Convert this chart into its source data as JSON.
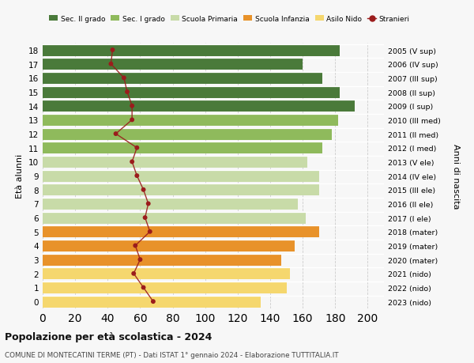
{
  "ages": [
    0,
    1,
    2,
    3,
    4,
    5,
    6,
    7,
    8,
    9,
    10,
    11,
    12,
    13,
    14,
    15,
    16,
    17,
    18
  ],
  "bar_values": [
    134,
    150,
    152,
    147,
    155,
    170,
    162,
    157,
    170,
    170,
    163,
    172,
    178,
    182,
    192,
    183,
    172,
    160,
    183
  ],
  "stranieri_values": [
    68,
    62,
    56,
    60,
    57,
    66,
    63,
    65,
    62,
    58,
    55,
    58,
    45,
    55,
    55,
    52,
    50,
    42,
    43
  ],
  "right_labels": [
    "2023 (nido)",
    "2022 (nido)",
    "2021 (nido)",
    "2020 (mater)",
    "2019 (mater)",
    "2018 (mater)",
    "2017 (I ele)",
    "2016 (II ele)",
    "2015 (III ele)",
    "2014 (IV ele)",
    "2013 (V ele)",
    "2012 (I med)",
    "2011 (II med)",
    "2010 (III med)",
    "2009 (I sup)",
    "2008 (II sup)",
    "2007 (III sup)",
    "2006 (IV sup)",
    "2005 (V sup)"
  ],
  "bar_colors": [
    "#f5d76e",
    "#f5d76e",
    "#f5d76e",
    "#e8922a",
    "#e8922a",
    "#e8922a",
    "#c8dba8",
    "#c8dba8",
    "#c8dba8",
    "#c8dba8",
    "#c8dba8",
    "#8fba5c",
    "#8fba5c",
    "#8fba5c",
    "#4a7a3a",
    "#4a7a3a",
    "#4a7a3a",
    "#4a7a3a",
    "#4a7a3a"
  ],
  "legend_labels": [
    "Sec. II grado",
    "Sec. I grado",
    "Scuola Primaria",
    "Scuola Infanzia",
    "Asilo Nido",
    "Stranieri"
  ],
  "legend_colors": [
    "#4a7a3a",
    "#8fba5c",
    "#c8dba8",
    "#e8922a",
    "#f5d76e",
    "#9b1c1c"
  ],
  "stranieri_color": "#9b1c1c",
  "stranieri_line_color": "#9b1c1c",
  "ylabel_left": "Età alunni",
  "ylabel_right": "Anni di nascita",
  "title": "Popolazione per età scolastica - 2024",
  "subtitle": "COMUNE DI MONTECATINI TERME (PT) - Dati ISTAT 1° gennaio 2024 - Elaborazione TUTTITALIA.IT",
  "xlim": [
    0,
    210
  ],
  "xticks": [
    0,
    20,
    40,
    60,
    80,
    100,
    120,
    140,
    160,
    180,
    200
  ],
  "bg_color": "#f7f7f7",
  "grid_color": "#cccccc"
}
